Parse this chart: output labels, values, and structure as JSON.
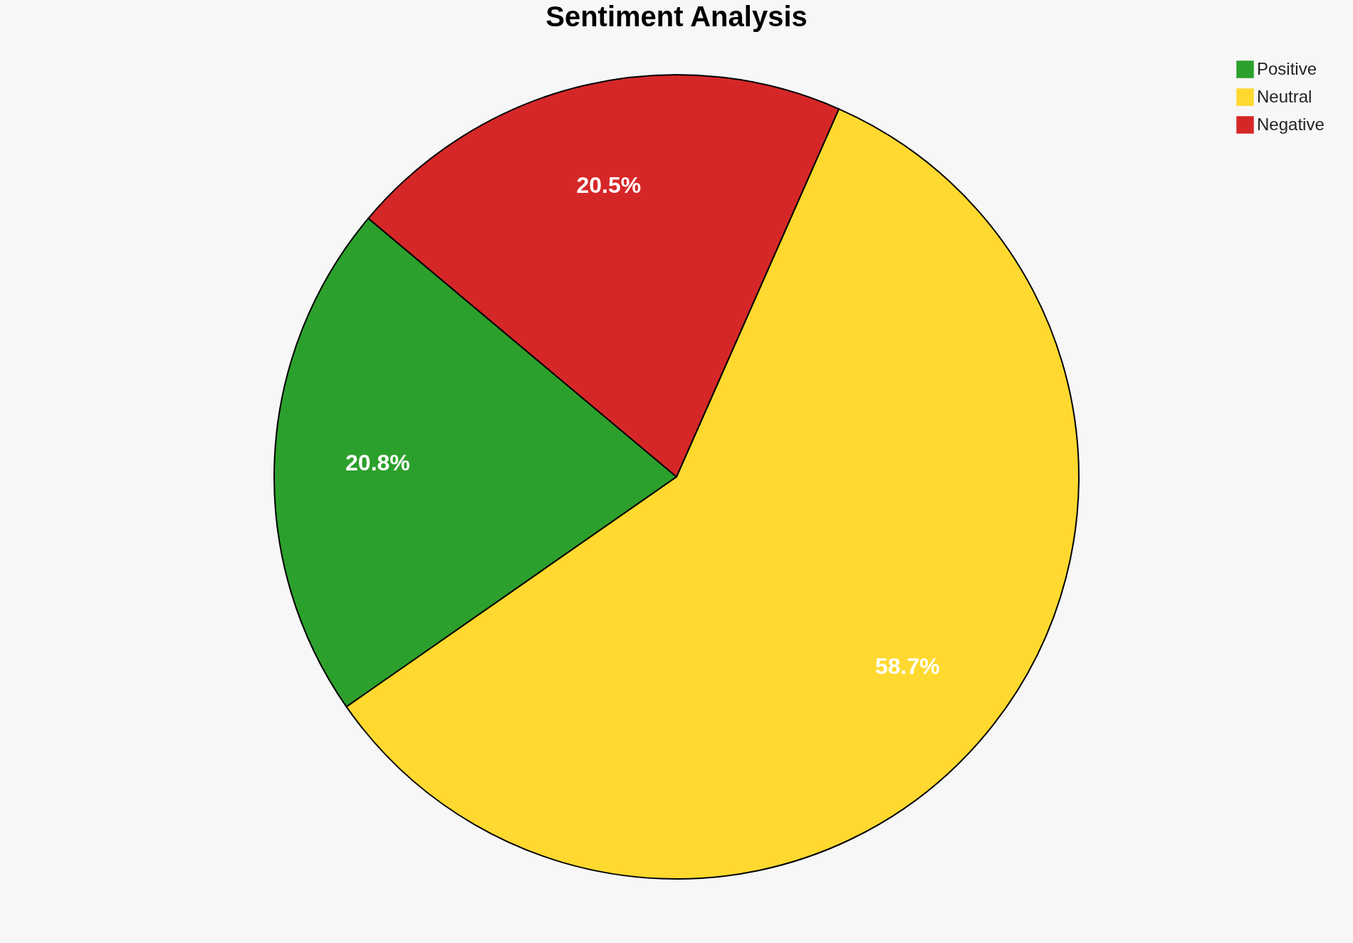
{
  "chart_data": {
    "type": "pie",
    "title": "Sentiment Analysis",
    "categories": [
      "Positive",
      "Neutral",
      "Negative"
    ],
    "values": [
      20.8,
      58.7,
      20.5
    ],
    "value_labels": [
      "20.8%",
      "58.7%",
      "20.5%"
    ],
    "colors": [
      "#2ca02c",
      "#ffd92f",
      "#d62728"
    ],
    "legend": "top right"
  }
}
